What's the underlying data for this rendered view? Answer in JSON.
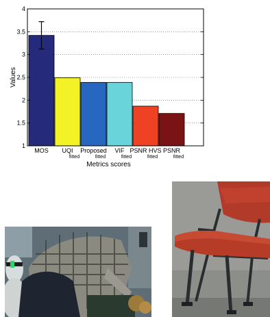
{
  "chart_data": {
    "type": "bar",
    "title": "",
    "xlabel": "Metrics scores",
    "ylabel": "Values",
    "ylim": [
      1,
      4
    ],
    "yticks": [
      "1",
      "1.5",
      "2",
      "2.5",
      "3",
      "3.5",
      "4"
    ],
    "grid": true,
    "categories": [
      {
        "label": "MOS",
        "sub": "",
        "value": 3.42,
        "error": [
          3.12,
          3.72
        ],
        "color": "#262a7a"
      },
      {
        "label": "UQI",
        "sub": "fitted",
        "value": 2.49,
        "color": "#f2f227"
      },
      {
        "label": "Proposed",
        "sub": "fitted",
        "value": 2.39,
        "color": "#2767bf"
      },
      {
        "label": "VIF",
        "sub": "fitted",
        "value": 2.39,
        "color": "#6ad4db"
      },
      {
        "label": "PSNR HVS",
        "sub": "fitted",
        "value": 1.87,
        "color": "#ef4224"
      },
      {
        "label": "PSNR",
        "sub": "fitted",
        "value": 1.71,
        "color": "#7a1414"
      }
    ]
  },
  "photos": [
    {
      "name": "office-person-frame"
    },
    {
      "name": "red-chair-frame"
    }
  ]
}
